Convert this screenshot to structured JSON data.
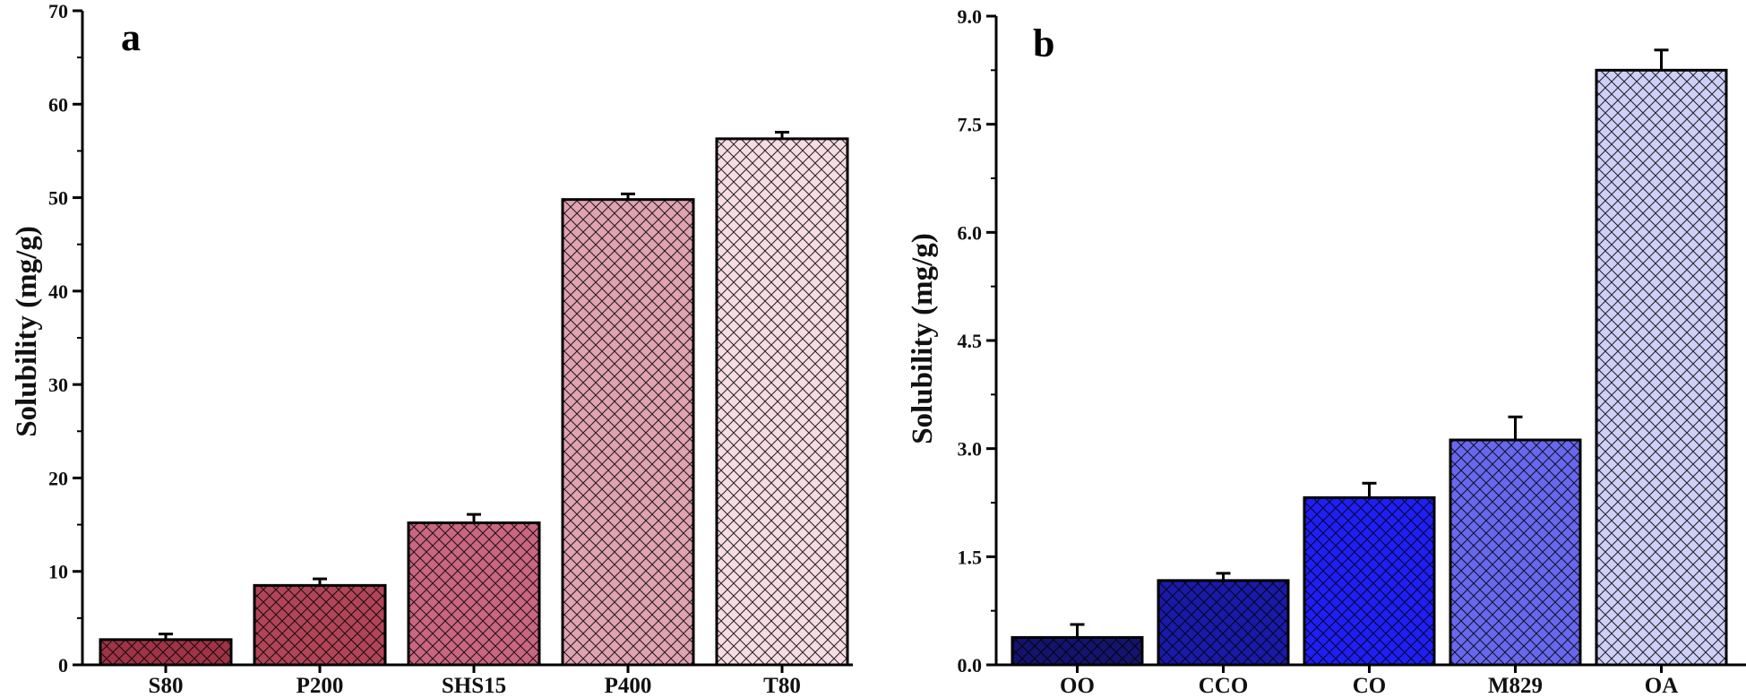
{
  "chart_data": [
    {
      "type": "bar",
      "panel": "a",
      "categories": [
        "S80",
        "P200",
        "SHS15",
        "P400",
        "T80"
      ],
      "values": [
        2.7,
        8.5,
        15.2,
        49.8,
        56.3
      ],
      "errors": [
        0.6,
        0.7,
        0.9,
        0.6,
        0.7
      ],
      "colors": [
        "#9e3446",
        "#b14558",
        "#c96680",
        "#dfa3b1",
        "#f6dde3"
      ],
      "ylabel": "Solubility (mg/g)",
      "xlabel": "",
      "ylim": [
        0,
        70
      ],
      "yticks": [
        0,
        10,
        20,
        30,
        40,
        50,
        60,
        70
      ],
      "ytick_labels": [
        "0",
        "10",
        "20",
        "30",
        "40",
        "50",
        "60",
        "70"
      ],
      "pattern": "crosshatch"
    },
    {
      "type": "bar",
      "panel": "b",
      "categories": [
        "OO",
        "CCO",
        "CO",
        "M829",
        "OA"
      ],
      "values": [
        0.38,
        1.17,
        2.32,
        3.12,
        8.25
      ],
      "errors": [
        0.18,
        0.1,
        0.2,
        0.32,
        0.28
      ],
      "colors": [
        "#14146e",
        "#1a1aa8",
        "#1f1ff5",
        "#6868ee",
        "#cfd0f7"
      ],
      "ylabel": "Solubility (mg/g)",
      "xlabel": "",
      "ylim": [
        0,
        9
      ],
      "yticks": [
        0,
        1.5,
        3,
        4.5,
        6,
        7.5,
        9
      ],
      "ytick_labels": [
        "0.0",
        "1.5",
        "3.0",
        "4.5",
        "6.0",
        "7.5",
        "9.0"
      ],
      "pattern": "crosshatch"
    }
  ]
}
